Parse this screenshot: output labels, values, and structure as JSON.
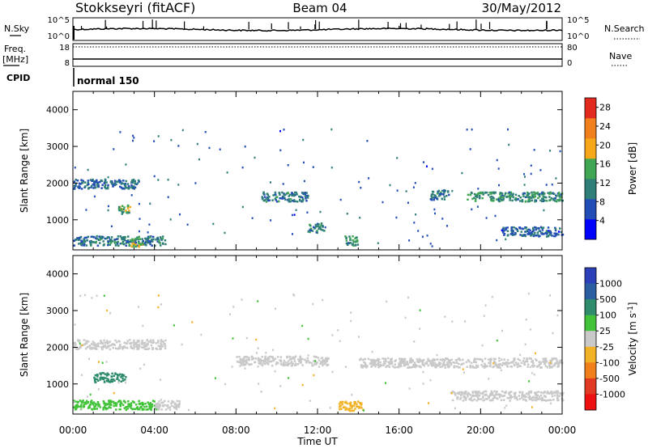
{
  "header": {
    "station": "Stokkseyri (fitACF)",
    "beam": "Beam 04",
    "date": "30/May/2012"
  },
  "strips": {
    "nsky_label": "N.Sky",
    "nsky_ticks": [
      "10^5",
      "10^0"
    ],
    "nsearch_label": "N.Search",
    "nsearch_ticks": [
      "10^5",
      "10^0"
    ],
    "freq_label": "Freq.",
    "freq_unit": "[MHz]",
    "freq_ticks": [
      "18",
      "8"
    ],
    "nave_label": "Nave",
    "nave_ticks": [
      "80",
      "0"
    ],
    "cpid_label": "CPID",
    "cpid_value": "normal 150"
  },
  "x_axis": {
    "label": "Time UT",
    "ticks": [
      "00:00",
      "04:00",
      "08:00",
      "12:00",
      "16:00",
      "20:00",
      "00:00"
    ]
  },
  "colors": {
    "power": [
      "#0000ff",
      "#234db6",
      "#2f7f78",
      "#40a653",
      "#f6a81a",
      "#f07f1c",
      "#e22a1e"
    ],
    "velocity": [
      "#2b3fb8",
      "#2a5ea1",
      "#2f8c6c",
      "#43c33a",
      "#c9c9c9",
      "#f2b227",
      "#f07f1c",
      "#e23a22",
      "#ee1010"
    ]
  },
  "chart_data": [
    {
      "type": "heatmap",
      "name": "Power panel",
      "xlabel": "Time UT",
      "ylabel": "Slant Range [km]",
      "xlim": [
        0,
        24
      ],
      "ylim": [
        180,
        4500
      ],
      "yticks": [
        "1000",
        "2000",
        "3000",
        "4000"
      ],
      "colorbar": {
        "label": "Power [dB]",
        "ticks": [
          "4",
          "8",
          "12",
          "16",
          "20",
          "24",
          "28"
        ],
        "range": [
          0,
          30
        ]
      },
      "features": [
        {
          "t_start": 0.0,
          "t_end": 3.2,
          "range_km": 2000,
          "value": 9
        },
        {
          "t_start": 2.2,
          "t_end": 2.8,
          "range_km": 1300,
          "value": 14
        },
        {
          "t_start": 0.0,
          "t_end": 4.5,
          "range_km": 450,
          "value": 10
        },
        {
          "t_start": 2.8,
          "t_end": 3.4,
          "range_km": 400,
          "value": 18
        },
        {
          "t_start": 9.2,
          "t_end": 11.5,
          "range_km": 1650,
          "value": 10
        },
        {
          "t_start": 11.5,
          "t_end": 12.3,
          "range_km": 800,
          "value": 11
        },
        {
          "t_start": 13.3,
          "t_end": 14.0,
          "range_km": 450,
          "value": 12
        },
        {
          "t_start": 17.5,
          "t_end": 18.4,
          "range_km": 1700,
          "value": 9
        },
        {
          "t_start": 19.3,
          "t_end": 24.0,
          "range_km": 1650,
          "value": 12
        },
        {
          "t_start": 21.0,
          "t_end": 24.0,
          "range_km": 700,
          "value": 8
        }
      ]
    },
    {
      "type": "heatmap",
      "name": "Velocity panel",
      "xlabel": "Time UT",
      "ylabel": "Slant Range [km]",
      "xlim": [
        0,
        24
      ],
      "ylim": [
        180,
        4500
      ],
      "yticks": [
        "1000",
        "2000",
        "3000",
        "4000"
      ],
      "colorbar": {
        "label": "Velocity [m s^-1]",
        "ticks": [
          "1000",
          "500",
          "100",
          "25",
          "-25",
          "-100",
          "-500",
          "-1000"
        ],
        "range": [
          -1000,
          1000
        ]
      },
      "features": [
        {
          "t_start": 0.0,
          "t_end": 4.5,
          "range_km": 2100,
          "value": 0
        },
        {
          "t_start": 1.0,
          "t_end": 2.6,
          "range_km": 1200,
          "value": 400
        },
        {
          "t_start": 0.0,
          "t_end": 4.0,
          "range_km": 450,
          "value": 150
        },
        {
          "t_start": 4.0,
          "t_end": 5.2,
          "range_km": 450,
          "value": 80
        },
        {
          "t_start": 8.0,
          "t_end": 12.5,
          "range_km": 1650,
          "value": 0
        },
        {
          "t_start": 13.0,
          "t_end": 14.2,
          "range_km": 420,
          "value": -150
        },
        {
          "t_start": 14.0,
          "t_end": 24.0,
          "range_km": 1600,
          "value": 0
        },
        {
          "t_start": 18.5,
          "t_end": 21.5,
          "range_km": 700,
          "value": 0
        },
        {
          "t_start": 21.5,
          "t_end": 24.0,
          "range_km": 700,
          "value": -60
        }
      ]
    }
  ]
}
